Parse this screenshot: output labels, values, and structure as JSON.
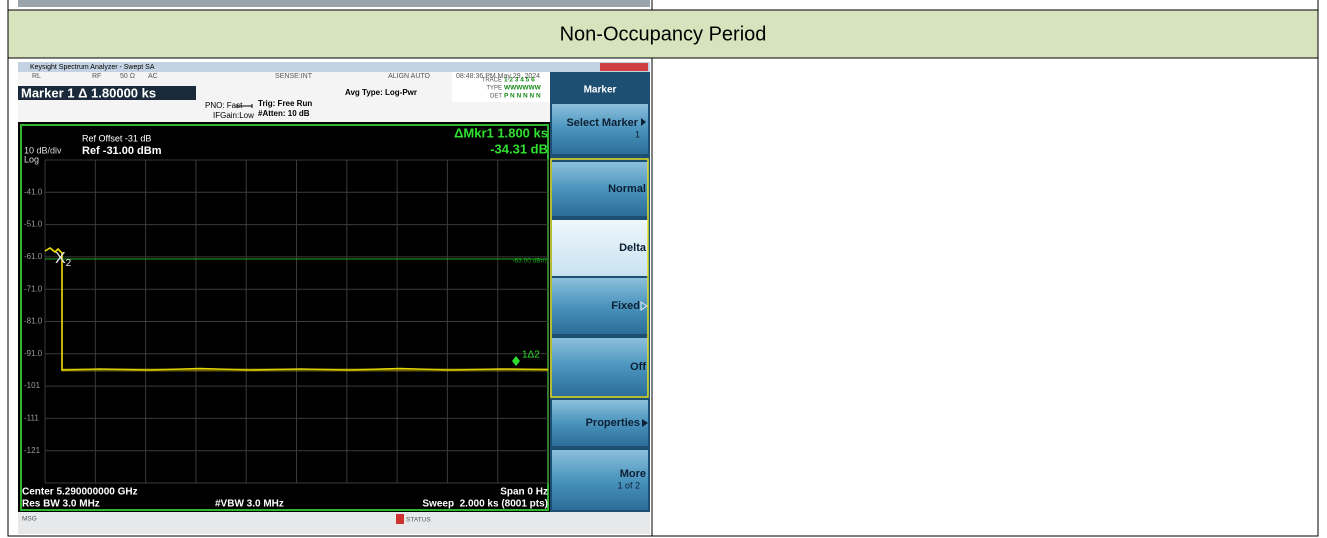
{
  "section": {
    "title": "Non-Occupancy Period"
  },
  "screenshot": {
    "window_title": "Keysight Spectrum Analyzer - Swept SA",
    "status_bar": [
      "RL",
      "RF",
      "50 Ω",
      "AC",
      "SENSE:INT",
      "ALIGN AUTO",
      "08:48:36 PM May 29, 2024"
    ],
    "marker_readout": "Marker 1 Δ 1.80000 ks",
    "settings": [
      "PNO: Fast",
      "IFGain:Low",
      "Trig: Free Run",
      "#Atten: 10 dB",
      "Avg Type: Log-Pwr"
    ],
    "trace_info": {
      "trace": "TRACE",
      "trace_numbers": "1 2 3 4 5 6",
      "type": "TYPE",
      "type_values": "WWWWWW",
      "det": "DET",
      "det_values": "P N N N N N"
    },
    "ref_offset": "Ref Offset -31 dB",
    "scale": "10 dB/div",
    "ref_level": "Ref -31.00 dBm",
    "scale_type": "Log",
    "delta_marker": "ΔMkr1 1.800 ks",
    "delta_value": "-34.31 dB",
    "y_labels": [
      "-41.0",
      "-51.0",
      "-61.0",
      "-71.0",
      "-81.0",
      "-91.0",
      "-101",
      "-111",
      "-121"
    ],
    "display_line": "-63.00 dBm",
    "marker_fixed": {
      "symbol": "X",
      "index": "2"
    },
    "marker_delta": "1Δ2",
    "footer": {
      "center": "Center 5.290000000 GHz",
      "span": "Span 0 Hz",
      "res_bw": "Res BW 3.0 MHz",
      "vbw": "#VBW 3.0 MHz",
      "sweep": "Sweep  2.000 ks (8001 pts)"
    },
    "message_bar": {
      "msg": "MSG",
      "status": "STATUS"
    },
    "softkeys": {
      "menu": "Marker",
      "items": [
        {
          "label": "Select Marker",
          "sub": "1"
        },
        {
          "label": "Normal"
        },
        {
          "label": "Delta"
        },
        {
          "label": "Fixed"
        },
        {
          "label": "Off"
        },
        {
          "label": "Properties"
        },
        {
          "label": "More",
          "sub": "1 of 2"
        }
      ]
    }
  }
}
